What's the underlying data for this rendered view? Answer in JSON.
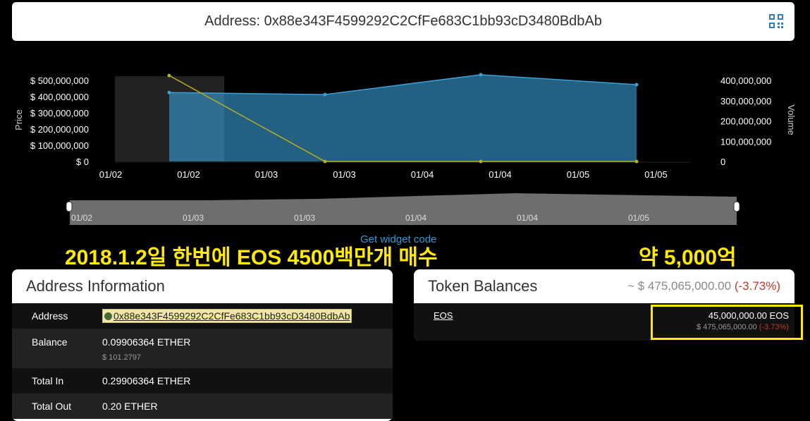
{
  "header": {
    "address_label": "Address: 0x88e343F4599292C2CfFe683C1bb93cD3480BdbAb",
    "qr_icon": "qr-code-icon"
  },
  "chart_data": {
    "type": "area",
    "x_ticks": [
      "01/02",
      "01/02",
      "01/03",
      "01/03",
      "01/04",
      "01/04",
      "01/05",
      "01/05"
    ],
    "ylabel_left": "Price",
    "ylabel_right": "Volume",
    "y_left_ticks": [
      "$ 500,000,000",
      "$ 400,000,000",
      "$ 300,000,000",
      "$ 200,000,000",
      "$ 100,000,000",
      "$ 0"
    ],
    "y_right_ticks": [
      "400,000,000",
      "300,000,000",
      "200,000,000",
      "100,000,000",
      "0"
    ],
    "ylim_left": [
      0,
      500000000
    ],
    "ylim_right": [
      0,
      400000000
    ],
    "series": [
      {
        "axis": "right",
        "type": "area",
        "color": "#3aa0d8",
        "values": [
          340000000,
          330000000,
          428000000,
          379000000
        ]
      },
      {
        "axis": "left",
        "type": "line",
        "color": "#b5b020",
        "values": [
          530000000,
          0,
          0,
          0
        ]
      }
    ],
    "navigator_ticks": [
      "01/02",
      "01/03",
      "01/03",
      "01/04",
      "01/04",
      "01/05"
    ]
  },
  "widget_link": "Get widget code",
  "annotations": {
    "left": "2018.1.2일 한번에 EOS 4500백만개 매수",
    "right": "약 5,000억"
  },
  "address_info": {
    "title": "Address Information",
    "rows": [
      {
        "k": "Address",
        "v": "0x88e343F4599292C2CfFe683C1bb93cD3480BdbAb"
      },
      {
        "k": "Balance",
        "v": "0.09906364 ETHER",
        "sub": "$ 101.2797"
      },
      {
        "k": "Total In",
        "v": "0.29906364 ETHER"
      },
      {
        "k": "Total Out",
        "v": "0.20 ETHER"
      }
    ]
  },
  "tokens": {
    "title": "Token Balances",
    "total": "~ $ 475,065,000.00",
    "total_change": "(-3.73%)",
    "items": [
      {
        "name": "EOS",
        "amount": "45,000,000.00 EOS",
        "value": "$ 475,065,000.00",
        "change": "(-3.73%)"
      }
    ],
    "highlight_color": "#ffea00"
  }
}
